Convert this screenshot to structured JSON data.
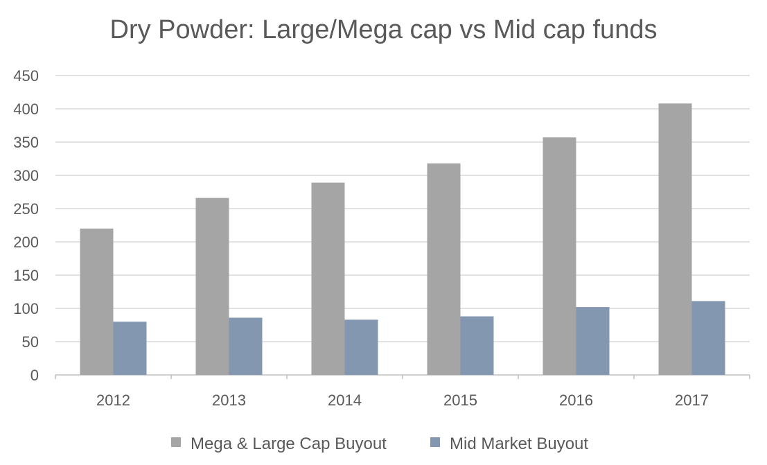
{
  "chart_data": {
    "type": "bar",
    "title": "Dry Powder: Large/Mega cap vs Mid cap funds",
    "xlabel": "",
    "ylabel": "",
    "categories": [
      "2012",
      "2013",
      "2014",
      "2015",
      "2016",
      "2017"
    ],
    "series": [
      {
        "name": "Mega & Large Cap Buyout",
        "values": [
          220,
          266,
          289,
          318,
          357,
          408
        ],
        "color": "#A5A5A5"
      },
      {
        "name": "Mid Market Buyout",
        "values": [
          80,
          86,
          83,
          88,
          102,
          111
        ],
        "color": "#8497B0"
      }
    ],
    "ylim": [
      0,
      450
    ],
    "yticks": [
      0,
      50,
      100,
      150,
      200,
      250,
      300,
      350,
      400,
      450
    ],
    "grid": true,
    "legend": "bottom"
  }
}
